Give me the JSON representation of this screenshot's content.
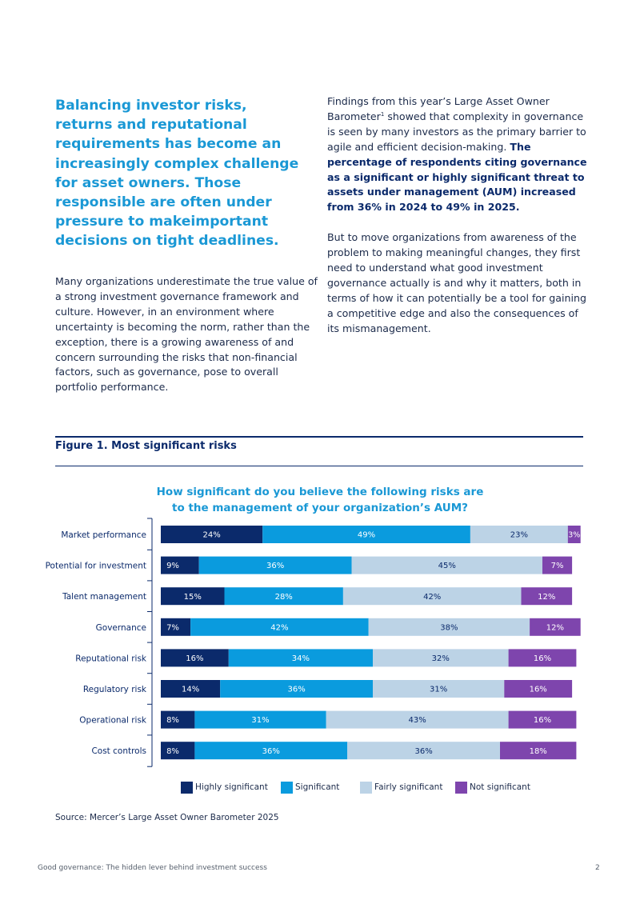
{
  "pull_quote": "Balancing investor risks, returns and reputational requirements has become an increasingly complex challenge for asset owners. Those responsible are often under pressure to makeimportant decisions on tight deadlines.",
  "left_body": "Many organizations underestimate the true value of a strong investment governance framework and culture. However, in an environment where uncertainty is becoming the norm, rather than the exception, there is a growing awareness of and concern surrounding the risks that non-financial factors, such as governance, pose to overall portfolio performance.",
  "right_col": {
    "p1_start": "Findings from this year’s Large Asset Owner Barometer",
    "p1_sup": "1",
    "p1_mid": " showed that complexity in governance is seen by many investors as the primary barrier to agile and efficient decision-making. ",
    "p1_bold": "The percentage of respondents citing governance as a significant or highly significant threat to assets under management (AUM) increased from 36% in 2024 to 49% in 2025.",
    "p2": "But to move organizations from awareness of the problem to making meaningful changes, they first need to understand what good investment governance actually is and why it matters, both in terms of how it can potentially be a tool for gaining a competitive edge and also the consequences of its mismanagement."
  },
  "figure": {
    "title": "Figure 1. Most significant risks",
    "source": "Source: Mercer’s Large Asset Owner Barometer 2025"
  },
  "chart_data": {
    "type": "bar",
    "orientation": "horizontal",
    "stacked": true,
    "title": "How significant do you believe the following risks are to the management of your organization’s AUM?",
    "categories": [
      "Market performance",
      "Potential for investment",
      "Talent management",
      "Governance",
      "Reputational risk",
      "Regulatory risk",
      "Operational risk",
      "Cost controls"
    ],
    "series": [
      {
        "name": "Highly significant",
        "color": "#0b2a6b",
        "values": [
          24,
          9,
          15,
          7,
          16,
          14,
          8,
          8
        ]
      },
      {
        "name": "Significant",
        "color": "#0a9bde",
        "values": [
          49,
          36,
          28,
          42,
          34,
          36,
          31,
          36
        ]
      },
      {
        "name": "Fairly significant",
        "color": "#bcd3e6",
        "values": [
          23,
          45,
          42,
          38,
          32,
          31,
          43,
          36
        ]
      },
      {
        "name": "Not significant",
        "color": "#7e45ad",
        "values": [
          3,
          7,
          12,
          12,
          16,
          16,
          16,
          18
        ]
      }
    ],
    "value_suffix": "%",
    "legend_position": "bottom",
    "xlim": [
      0,
      100
    ],
    "grid": false
  },
  "footer": {
    "text": "Good governance: The hidden lever behind investment success",
    "page": "2"
  }
}
